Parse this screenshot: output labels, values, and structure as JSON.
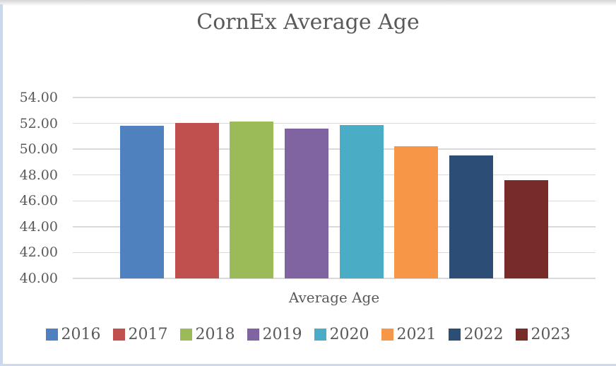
{
  "chart_data": {
    "type": "bar",
    "title": "CornEx Average Age",
    "xlabel": "Average Age",
    "categories": [
      "Average Age"
    ],
    "series": [
      {
        "name": "2016",
        "color": "#4E81BD",
        "values": [
          51.8
        ]
      },
      {
        "name": "2017",
        "color": "#C0504D",
        "values": [
          52.05
        ]
      },
      {
        "name": "2018",
        "color": "#9BBB59",
        "values": [
          52.15
        ]
      },
      {
        "name": "2019",
        "color": "#8064A2",
        "values": [
          51.6
        ]
      },
      {
        "name": "2020",
        "color": "#4BACC6",
        "values": [
          51.85
        ]
      },
      {
        "name": "2021",
        "color": "#F79646",
        "values": [
          50.25
        ]
      },
      {
        "name": "2022",
        "color": "#2C4D75",
        "values": [
          49.5
        ]
      },
      {
        "name": "2023",
        "color": "#772C2A",
        "values": [
          47.6
        ]
      }
    ],
    "ylim": [
      40,
      54
    ],
    "yticks": [
      "54.00",
      "52.00",
      "50.00",
      "48.00",
      "46.00",
      "44.00",
      "42.00",
      "40.00"
    ],
    "grid": true,
    "legend_position": "bottom",
    "text_color": "#595959",
    "gridline_color": "#d9d9d9"
  }
}
